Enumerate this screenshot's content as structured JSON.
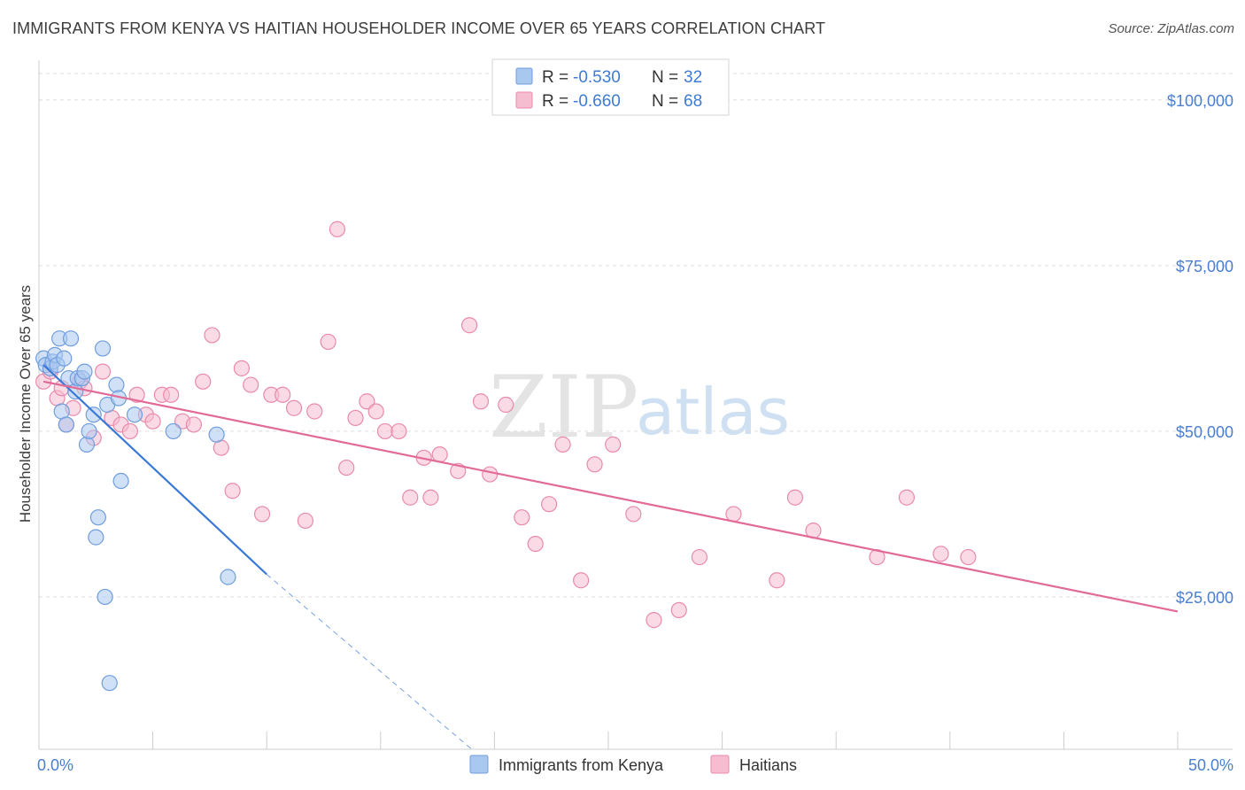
{
  "title": "IMMIGRANTS FROM KENYA VS HAITIAN HOUSEHOLDER INCOME OVER 65 YEARS CORRELATION CHART",
  "source": "Source: ZipAtlas.com",
  "watermark": {
    "zip": "ZIP",
    "atlas": "atlas"
  },
  "colors": {
    "kenya_fill": "#a9c8f0",
    "kenya_stroke": "#6f9ddd",
    "kenya_line": "#3a78d6",
    "haiti_fill": "#f6bcd0",
    "haiti_stroke": "#e98aab",
    "haiti_line": "#e16b96",
    "grid": "#dddddd",
    "tick_label": "#4a7fd0"
  },
  "legend": {
    "kenya": {
      "r_label": "R =",
      "r_value": "-0.530",
      "n_label": "N =",
      "n_value": "32"
    },
    "haiti": {
      "r_label": "R =",
      "r_value": "-0.660",
      "n_label": "N =",
      "n_value": "68"
    }
  },
  "chart_data": {
    "type": "scatter",
    "title": "IMMIGRANTS FROM KENYA VS HAITIAN HOUSEHOLDER INCOME OVER 65 YEARS CORRELATION CHART",
    "xlabel": "",
    "ylabel": "Householder Income Over 65 years",
    "xlim": [
      0,
      50
    ],
    "ylim": [
      2000,
      106000
    ],
    "x_tick_labels": [
      {
        "value": 0,
        "label": "0.0%"
      },
      {
        "value": 50,
        "label": "50.0%"
      }
    ],
    "y_ticks": [
      {
        "value": 25000,
        "label": "$25,000"
      },
      {
        "value": 50000,
        "label": "$50,000"
      },
      {
        "value": 75000,
        "label": "$75,000"
      },
      {
        "value": 100000,
        "label": "$100,000"
      }
    ],
    "grid": true,
    "legend_position": "top-center",
    "series": [
      {
        "name": "Immigrants from Kenya",
        "color": "#a9c8f0",
        "x": [
          0.2,
          0.3,
          0.5,
          0.6,
          0.7,
          0.8,
          0.9,
          1.0,
          1.1,
          1.2,
          1.3,
          1.4,
          1.6,
          1.7,
          1.9,
          2.0,
          2.1,
          2.2,
          2.4,
          2.5,
          2.6,
          2.8,
          2.9,
          3.0,
          3.1,
          3.4,
          3.5,
          3.6,
          4.2,
          5.9,
          7.8,
          8.3
        ],
        "y": [
          61000,
          60000,
          59500,
          60500,
          61500,
          60000,
          64000,
          53000,
          61000,
          51000,
          58000,
          64000,
          56000,
          58000,
          58000,
          59000,
          48000,
          50000,
          52500,
          34000,
          37000,
          62500,
          25000,
          54000,
          12000,
          57000,
          55000,
          42500,
          52500,
          50000,
          49500,
          28000
        ],
        "trendline": {
          "x": [
            0.2,
            10.0
          ],
          "y": [
            60000,
            28400
          ],
          "dashed_extension": {
            "x": [
              10.0,
              19.0
            ],
            "y": [
              28400,
              2000
            ]
          }
        }
      },
      {
        "name": "Haitians",
        "color": "#f6bcd0",
        "x": [
          0.2,
          0.5,
          0.8,
          1.0,
          1.2,
          1.5,
          1.8,
          2.0,
          2.4,
          2.8,
          3.2,
          3.6,
          4.0,
          4.3,
          4.7,
          5.0,
          5.4,
          5.8,
          6.3,
          6.8,
          7.2,
          7.6,
          8.0,
          8.5,
          8.9,
          9.3,
          9.8,
          10.2,
          10.7,
          11.2,
          11.7,
          12.1,
          12.7,
          13.1,
          13.5,
          13.9,
          14.4,
          14.8,
          15.2,
          15.8,
          16.3,
          16.9,
          17.2,
          17.6,
          18.4,
          18.9,
          19.4,
          19.8,
          20.5,
          21.2,
          21.8,
          22.4,
          23.0,
          23.8,
          24.4,
          25.2,
          26.1,
          27.0,
          28.1,
          29.0,
          30.5,
          32.4,
          33.2,
          34.0,
          36.8,
          38.1,
          39.6,
          40.8
        ],
        "y": [
          57500,
          59000,
          55000,
          56500,
          51000,
          53500,
          57500,
          56500,
          49000,
          59000,
          52000,
          51000,
          50000,
          55500,
          52500,
          51500,
          55500,
          55500,
          51500,
          51000,
          57500,
          64500,
          47500,
          41000,
          59500,
          57000,
          37500,
          55500,
          55500,
          53500,
          36500,
          53000,
          63500,
          80500,
          44500,
          52000,
          54500,
          53000,
          50000,
          50000,
          40000,
          46000,
          40000,
          46500,
          44000,
          66000,
          54500,
          43500,
          54000,
          37000,
          33000,
          39000,
          48000,
          27500,
          45000,
          48000,
          37500,
          21500,
          23000,
          31000,
          37500,
          27500,
          40000,
          35000,
          31000,
          40000,
          31500,
          31000
        ],
        "trendline": {
          "x": [
            0.2,
            50.0
          ],
          "y": [
            57500,
            22800
          ]
        }
      }
    ]
  },
  "bottom_legend": {
    "kenya_label": "Immigrants from Kenya",
    "haiti_label": "Haitians"
  }
}
